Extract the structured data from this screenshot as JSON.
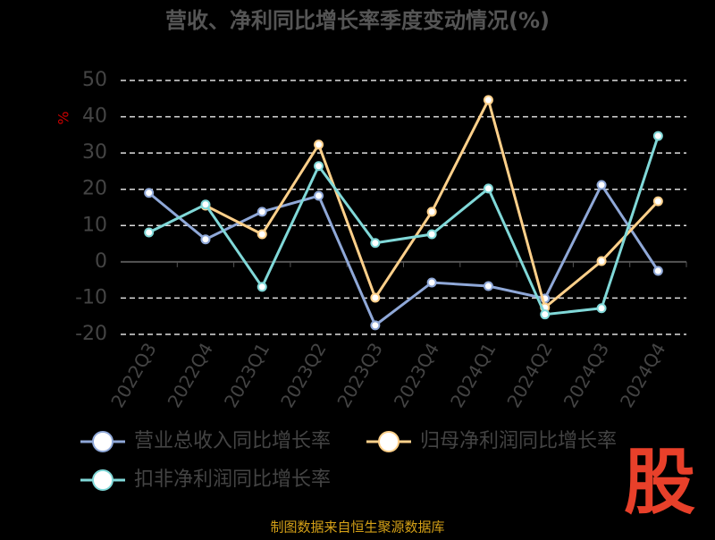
{
  "chart_data": {
    "type": "line",
    "title": "营收、净利同比增长率季度变动情况(%)",
    "y_label": "%",
    "categories": [
      "2022Q3",
      "2022Q4",
      "2023Q1",
      "2023Q2",
      "2023Q3",
      "2023Q4",
      "2024Q1",
      "2024Q2",
      "2024Q3",
      "2024Q4"
    ],
    "series": [
      {
        "name": "营业总收入同比增长率",
        "color": "#8fa8d8",
        "values": [
          19.0,
          6.2,
          13.8,
          18.2,
          -17.5,
          -5.7,
          -6.7,
          -10.1,
          21.2,
          -2.5
        ]
      },
      {
        "name": "归母净利润同比增长率",
        "color": "#ffd08a",
        "values": [
          null,
          15.5,
          7.6,
          32.3,
          -9.9,
          13.8,
          44.6,
          -12.6,
          0.2,
          16.7
        ]
      },
      {
        "name": "扣非净利润同比增长率",
        "color": "#80d8d8",
        "values": [
          8.1,
          15.8,
          -6.9,
          26.4,
          5.2,
          7.6,
          20.2,
          -14.5,
          -12.8,
          34.7
        ]
      }
    ],
    "ylim": [
      -20,
      50
    ],
    "yticks": [
      -20,
      -10,
      0,
      10,
      20,
      30,
      40,
      50
    ],
    "grid": true,
    "source": "制图数据来自恒生聚源数据库",
    "watermark": "股"
  }
}
